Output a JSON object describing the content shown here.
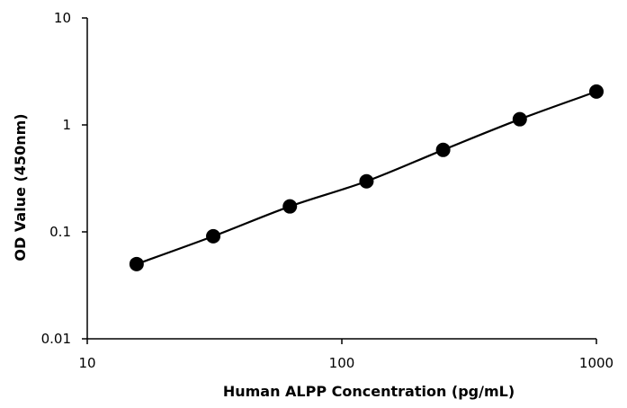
{
  "chart_data": {
    "type": "scatter",
    "x_scale": "log",
    "y_scale": "log",
    "xlabel": "Human ALPP Concentration (pg/mL)",
    "ylabel": "OD Value (450nm)",
    "xlim": [
      10,
      1000
    ],
    "ylim": [
      0.01,
      10
    ],
    "x_ticks": [
      10,
      100,
      1000
    ],
    "x_tick_labels": [
      "10",
      "100",
      "1000"
    ],
    "y_ticks": [
      0.01,
      0.1,
      1,
      10
    ],
    "y_tick_labels": [
      "0.01",
      "0.1",
      "1",
      "10"
    ],
    "grid": false,
    "legend": "none",
    "series": [
      {
        "x": [
          15.625,
          31.25,
          62.5,
          125,
          250,
          500,
          1000
        ],
        "y": [
          0.05,
          0.091,
          0.173,
          0.297,
          0.584,
          1.13,
          2.05
        ],
        "line": "smooth",
        "color": "#000000"
      }
    ]
  }
}
